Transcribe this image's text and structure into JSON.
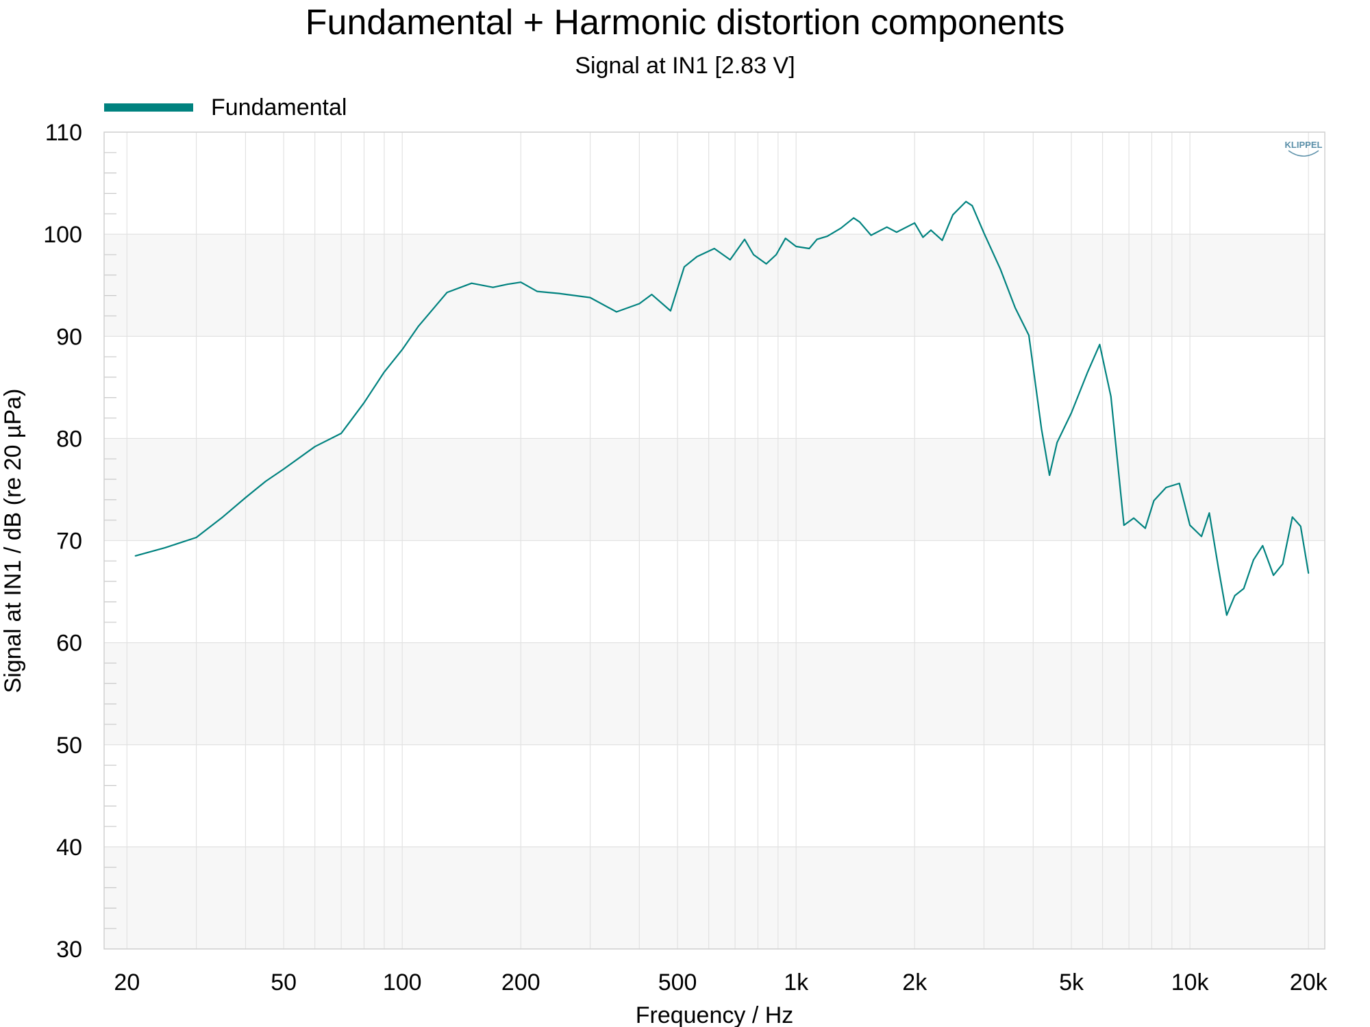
{
  "chart_data": {
    "type": "line",
    "title": "Fundamental + Harmonic distortion components",
    "subtitle": "Signal at IN1 [2.83 V]",
    "xlabel": "Frequency / Hz",
    "ylabel": "Signal at IN1 / dB (re 20 µPa)",
    "x_scale": "log",
    "xlim": [
      17.5,
      22000
    ],
    "ylim": [
      30,
      110
    ],
    "x_ticks": [
      {
        "value": 20,
        "label": "20"
      },
      {
        "value": 50,
        "label": "50"
      },
      {
        "value": 100,
        "label": "100"
      },
      {
        "value": 200,
        "label": "200"
      },
      {
        "value": 500,
        "label": "500"
      },
      {
        "value": 1000,
        "label": "1k"
      },
      {
        "value": 2000,
        "label": "2k"
      },
      {
        "value": 5000,
        "label": "5k"
      },
      {
        "value": 10000,
        "label": "10k"
      },
      {
        "value": 20000,
        "label": "20k"
      }
    ],
    "y_ticks": [
      30,
      40,
      50,
      60,
      70,
      80,
      90,
      100,
      110
    ],
    "grid": true,
    "legend_position": "top-left",
    "logo": "KLIPPEL",
    "series": [
      {
        "name": "Fundamental",
        "color": "#00827f",
        "x": [
          21,
          25,
          30,
          35,
          40,
          45,
          50,
          60,
          70,
          80,
          90,
          100,
          110,
          130,
          150,
          170,
          185,
          200,
          220,
          250,
          300,
          350,
          400,
          430,
          480,
          520,
          560,
          620,
          680,
          740,
          780,
          840,
          890,
          940,
          1000,
          1080,
          1130,
          1200,
          1300,
          1400,
          1450,
          1550,
          1700,
          1800,
          2000,
          2100,
          2200,
          2350,
          2500,
          2700,
          2800,
          3000,
          3300,
          3600,
          3900,
          4200,
          4400,
          4600,
          5000,
          5500,
          5900,
          6300,
          6800,
          7200,
          7700,
          8100,
          8700,
          9400,
          10000,
          10700,
          11200,
          11800,
          12400,
          13000,
          13700,
          14500,
          15300,
          16300,
          17200,
          18200,
          19100,
          20000
        ],
        "y": [
          68.5,
          69.3,
          70.3,
          72.3,
          74.2,
          75.8,
          77,
          79.2,
          80.5,
          83.5,
          86.5,
          88.7,
          91,
          94.3,
          95.2,
          94.8,
          95.1,
          95.3,
          94.4,
          94.2,
          93.8,
          92.4,
          93.2,
          94.1,
          92.5,
          96.8,
          97.8,
          98.6,
          97.5,
          99.5,
          98,
          97.1,
          98,
          99.6,
          98.8,
          98.6,
          99.5,
          99.8,
          100.6,
          101.6,
          101.2,
          99.9,
          100.7,
          100.2,
          101.1,
          99.7,
          100.4,
          99.4,
          101.9,
          103.2,
          102.8,
          100.1,
          96.6,
          92.8,
          90.1,
          80.9,
          76.4,
          79.6,
          82.5,
          86.5,
          89.2,
          84.1,
          71.5,
          72.2,
          71.2,
          73.9,
          75.2,
          75.6,
          71.5,
          70.4,
          72.7,
          67.4,
          62.7,
          64.6,
          65.3,
          68.1,
          69.5,
          66.6,
          67.7,
          72.3,
          71.4,
          66.8
        ]
      }
    ]
  }
}
